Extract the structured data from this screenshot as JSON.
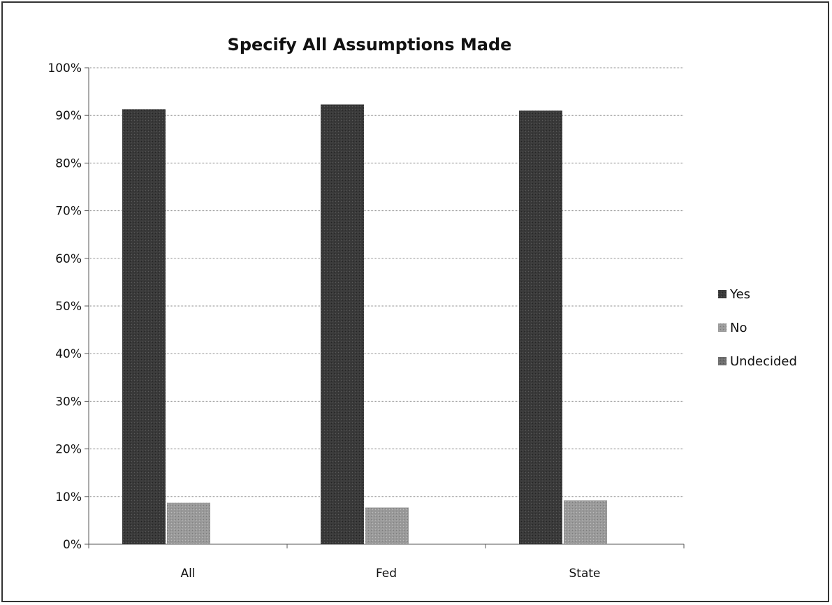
{
  "chart_data": {
    "type": "bar",
    "title": "Specify All Assumptions Made",
    "xlabel": "",
    "ylabel": "",
    "categories": [
      "All",
      "Fed",
      "State"
    ],
    "series": [
      {
        "name": "Yes",
        "values": [
          91.3,
          92.3,
          91.0
        ],
        "color": "#3a3a3a"
      },
      {
        "name": "No",
        "values": [
          8.7,
          7.7,
          9.2
        ],
        "color": "#9a9a9a"
      },
      {
        "name": "Undecided",
        "values": [
          0,
          0,
          0
        ],
        "color": "#6e6e6e"
      }
    ],
    "ylim": [
      0,
      100
    ],
    "yticks": [
      0,
      10,
      20,
      30,
      40,
      50,
      60,
      70,
      80,
      90,
      100
    ],
    "ytick_labels": [
      "0%",
      "10%",
      "20%",
      "30%",
      "40%",
      "50%",
      "60%",
      "70%",
      "80%",
      "90%",
      "100%"
    ],
    "grid": true,
    "legend_position": "right"
  }
}
